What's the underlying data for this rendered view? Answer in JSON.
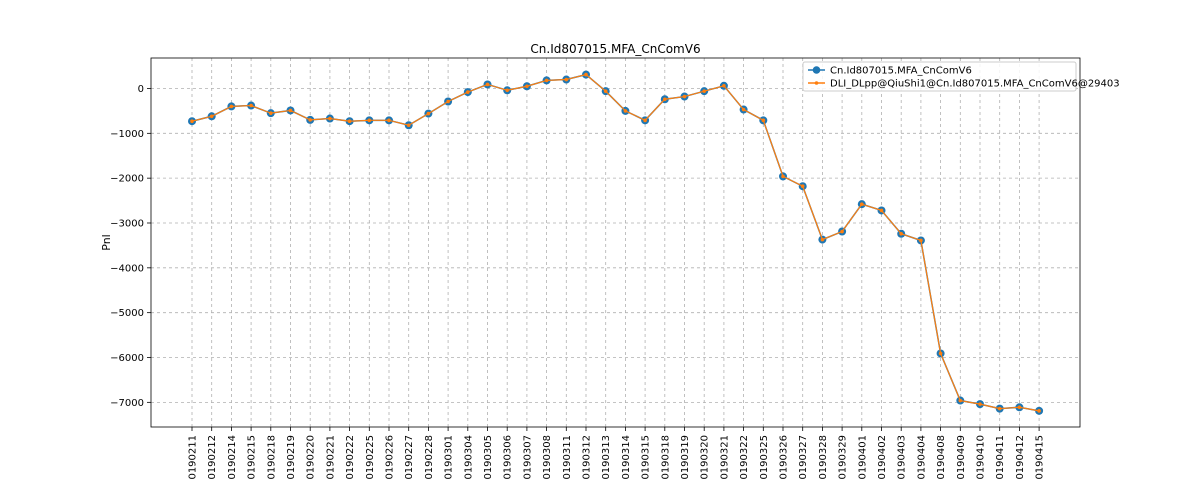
{
  "chart_data": {
    "type": "line",
    "title": "Cn.Id807015.MFA_CnComV6",
    "xlabel": "",
    "ylabel": "Pnl",
    "ylim": [
      -7550,
      680
    ],
    "yticks": [
      0,
      -1000,
      -2000,
      -3000,
      -4000,
      -5000,
      -6000,
      -7000
    ],
    "grid": true,
    "legend_position": "top-right",
    "categories": [
      "20190211",
      "20190212",
      "20190214",
      "20190215",
      "20190218",
      "20190219",
      "20190220",
      "20190221",
      "20190222",
      "20190225",
      "20190226",
      "20190227",
      "20190228",
      "20190301",
      "20190304",
      "20190305",
      "20190306",
      "20190307",
      "20190308",
      "20190311",
      "20190312",
      "20190313",
      "20190314",
      "20190315",
      "20190318",
      "20190319",
      "20190320",
      "20190321",
      "20190322",
      "20190325",
      "20190326",
      "20190327",
      "20190328",
      "20190329",
      "20190401",
      "20190402",
      "20190403",
      "20190404",
      "20190408",
      "20190409",
      "20190410",
      "20190411",
      "20190412",
      "20190415"
    ],
    "series": [
      {
        "name": "Cn.Id807015.MFA_CnComV6",
        "color": "#1f77b4",
        "marker": "circle-large",
        "values": [
          -730,
          -620,
          -400,
          -380,
          -550,
          -490,
          -700,
          -670,
          -730,
          -710,
          -710,
          -820,
          -560,
          -290,
          -80,
          90,
          -40,
          50,
          180,
          200,
          310,
          -60,
          -500,
          -710,
          -240,
          -180,
          -60,
          60,
          -470,
          -710,
          -1960,
          -2180,
          -3370,
          -3190,
          -2580,
          -2720,
          -3240,
          -3390,
          -5910,
          -6960,
          -7040,
          -7140,
          -7110,
          -7190
        ]
      },
      {
        "name": "DLI_DLpp@QiuShi1@Cn.Id807015.MFA_CnComV6@29403",
        "color": "#ff7f0e",
        "marker": "circle-small",
        "values": [
          -730,
          -620,
          -400,
          -380,
          -550,
          -490,
          -700,
          -670,
          -730,
          -710,
          -710,
          -820,
          -560,
          -290,
          -80,
          90,
          -40,
          50,
          180,
          200,
          310,
          -60,
          -500,
          -710,
          -240,
          -180,
          -60,
          60,
          -470,
          -710,
          -1960,
          -2180,
          -3370,
          -3190,
          -2580,
          -2720,
          -3240,
          -3390,
          -5910,
          -6960,
          -7040,
          -7140,
          -7110,
          -7190
        ]
      }
    ]
  }
}
